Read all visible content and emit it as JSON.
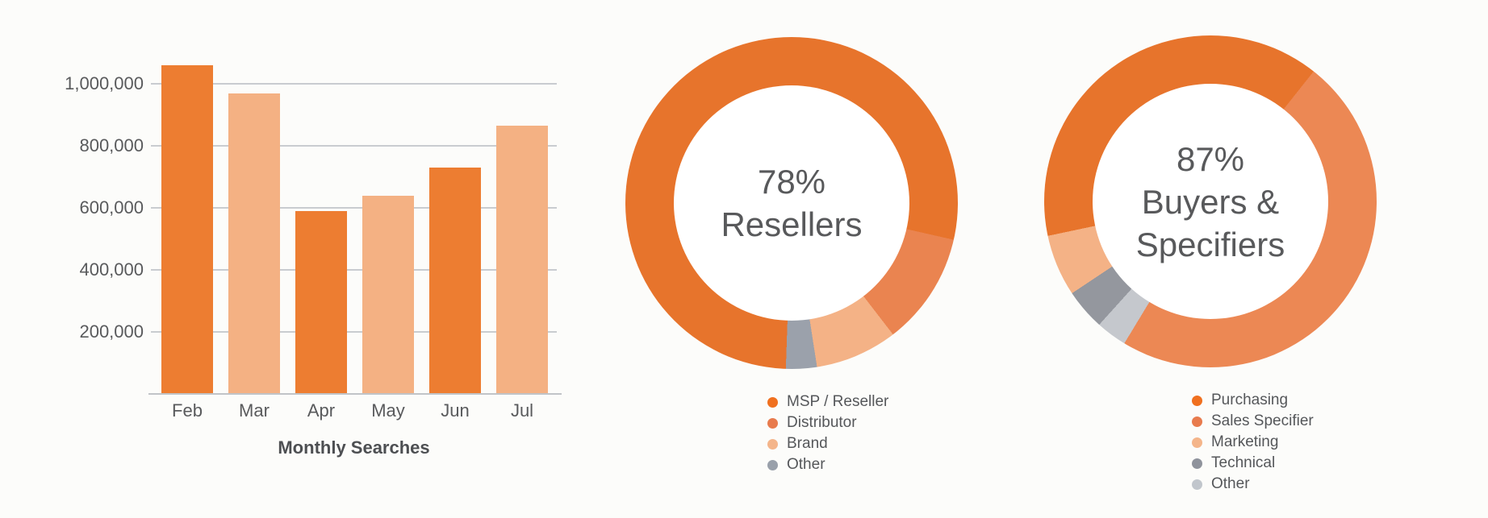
{
  "page": {
    "background": "#FCFCFA"
  },
  "colors": {
    "grid": "#C9CCD0",
    "axis": "#C1C4C8",
    "tick_text": "#595A5C",
    "title_text": "#4D4F52",
    "center_text": "#58595B",
    "legend_text": "#55575A"
  },
  "chart_data": [
    {
      "type": "bar",
      "title": "Monthly Searches",
      "categories": [
        "Feb",
        "Mar",
        "Apr",
        "May",
        "Jun",
        "Jul"
      ],
      "values": [
        1060000,
        970000,
        590000,
        640000,
        730000,
        865000
      ],
      "bar_colors": [
        "#ED7D31",
        "#F4B183",
        "#ED7D31",
        "#F4B183",
        "#ED7D31",
        "#F4B183"
      ],
      "y_ticks": [
        200000,
        400000,
        600000,
        800000,
        1000000
      ],
      "y_tick_labels": [
        "200,000",
        "400,000",
        "600,000",
        "800,000",
        "1,000,000"
      ],
      "ylim": [
        0,
        1170000
      ],
      "grid": true,
      "legend_position": "none"
    },
    {
      "type": "donut",
      "name": "resellers-donut",
      "center_label_lines": [
        "78%",
        "Resellers"
      ],
      "rotation_deg": 182,
      "clockwise_order": [
        "MSP / Reseller",
        "Distributor",
        "Brand",
        "Other"
      ],
      "segments": [
        {
          "label": "MSP / Reseller",
          "percent": 78,
          "color": "#E7742C",
          "legend_dot_color": "#F0701F"
        },
        {
          "label": "Distributor",
          "percent": 11,
          "color": "#EA8450",
          "legend_dot_color": "#E87B4D"
        },
        {
          "label": "Brand",
          "percent": 8,
          "color": "#F4B286",
          "legend_dot_color": "#F4B58A"
        },
        {
          "label": "Other",
          "percent": 3,
          "color": "#9BA1AB",
          "legend_dot_color": "#99A0AA"
        }
      ],
      "legend_position": "bottom"
    },
    {
      "type": "donut",
      "name": "buyers-specifiers-donut",
      "center_label_lines": [
        "87%",
        "Buyers &",
        "Specifiers"
      ],
      "rotation_deg": 258,
      "clockwise_order": [
        "Purchasing",
        "Sales Specifier",
        "Other",
        "Technical",
        "Marketing"
      ],
      "segments": [
        {
          "label": "Purchasing",
          "percent": 39,
          "color": "#E7742C",
          "legend_dot_color": "#F0701F"
        },
        {
          "label": "Sales Specifier",
          "percent": 48,
          "color": "#EC8854",
          "legend_dot_color": "#E87B4D"
        },
        {
          "label": "Marketing",
          "percent": 6,
          "color": "#F4B286",
          "legend_dot_color": "#F4B58A"
        },
        {
          "label": "Technical",
          "percent": 4,
          "color": "#94979E",
          "legend_dot_color": "#8F939C"
        },
        {
          "label": "Other",
          "percent": 3,
          "color": "#C5C8CD",
          "legend_dot_color": "#C1C6CC"
        }
      ],
      "legend_position": "bottom"
    }
  ]
}
